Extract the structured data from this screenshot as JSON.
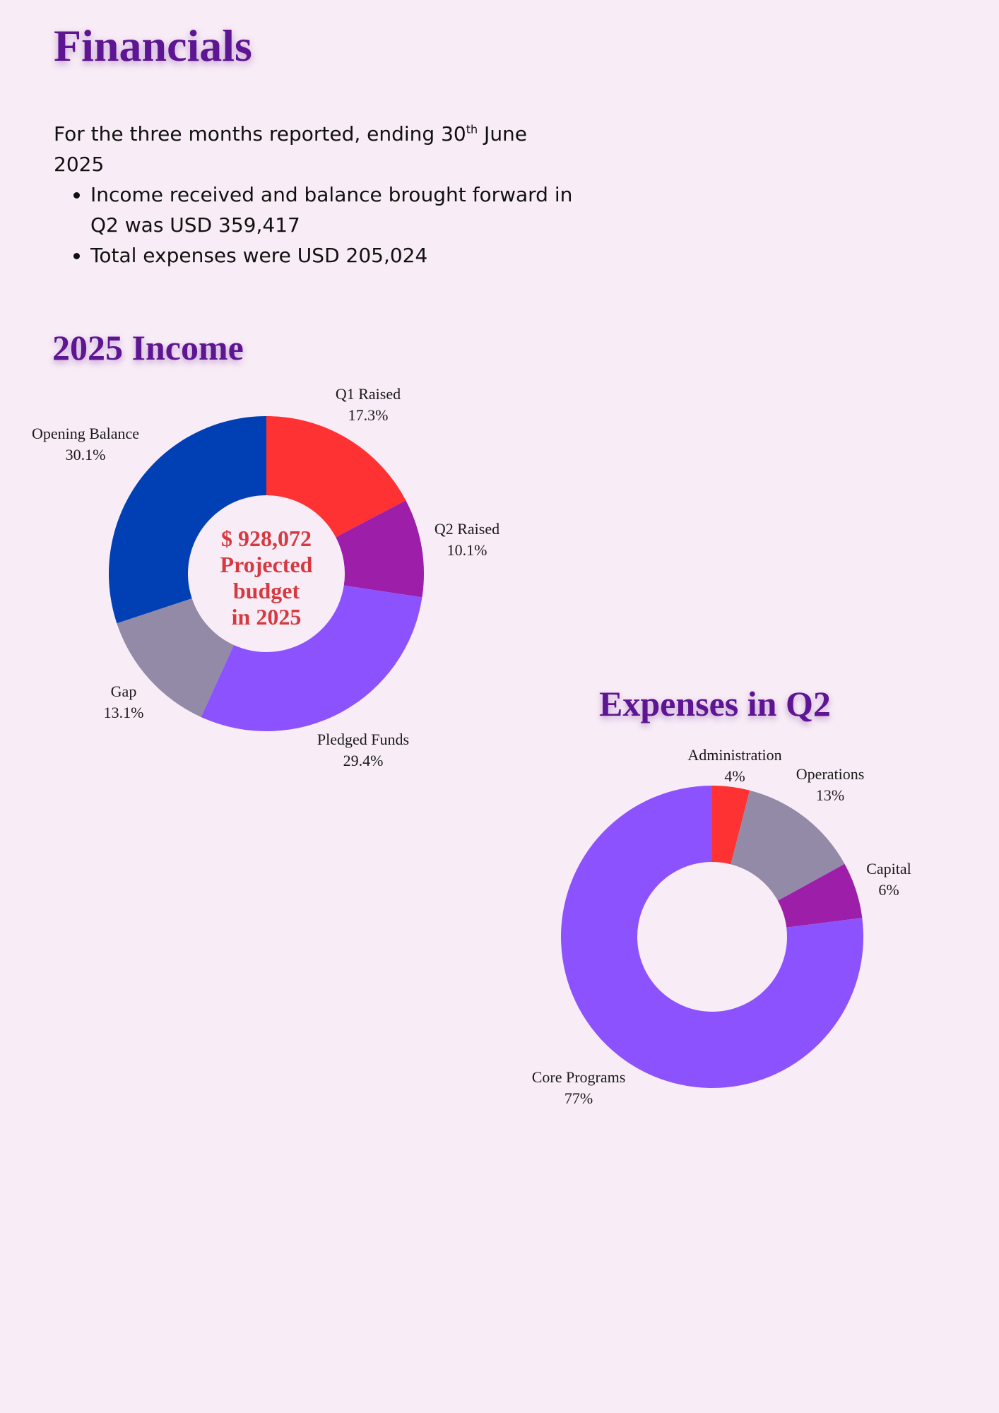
{
  "page": {
    "title": "Financials",
    "intro_lead": "For the three months reported, ending 30",
    "intro_sup": "th",
    "intro_tail": " June 2025",
    "bullets": [
      "Income received and balance brought forward in Q2 was USD 359,417",
      "Total expenses were USD 205,024"
    ]
  },
  "income": {
    "heading": "2025 Income",
    "center_lines": [
      "$ 928,072",
      "Projected",
      "budget",
      "in 2025"
    ]
  },
  "expenses": {
    "heading": "Expenses in Q2"
  },
  "chart_data": [
    {
      "type": "pie",
      "title": "2025 Income",
      "donut": true,
      "slices": [
        {
          "label": "Q1 Raised",
          "value": 17.3,
          "pct_label": "17.3%",
          "color": "#fe3232"
        },
        {
          "label": "Q2 Raised",
          "value": 10.1,
          "pct_label": "10.1%",
          "color": "#9d1ea9"
        },
        {
          "label": "Pledged Funds",
          "value": 29.4,
          "pct_label": "29.4%",
          "color": "#8c52fe"
        },
        {
          "label": "Gap",
          "value": 13.1,
          "pct_label": "13.1%",
          "color": "#928aa6"
        },
        {
          "label": "Opening Balance",
          "value": 30.1,
          "pct_label": "30.1%",
          "color": "#0140b4"
        }
      ]
    },
    {
      "type": "pie",
      "title": "Expenses in Q2",
      "donut": true,
      "slices": [
        {
          "label": "Administration",
          "value": 4,
          "pct_label": "4%",
          "color": "#fe3232"
        },
        {
          "label": "Operations",
          "value": 13,
          "pct_label": "13%",
          "color": "#928aa6"
        },
        {
          "label": "Capital",
          "value": 6,
          "pct_label": "6%",
          "color": "#9d1ea9"
        },
        {
          "label": "Core Programs",
          "value": 77,
          "pct_label": "77%",
          "color": "#8c52fe"
        }
      ]
    }
  ]
}
